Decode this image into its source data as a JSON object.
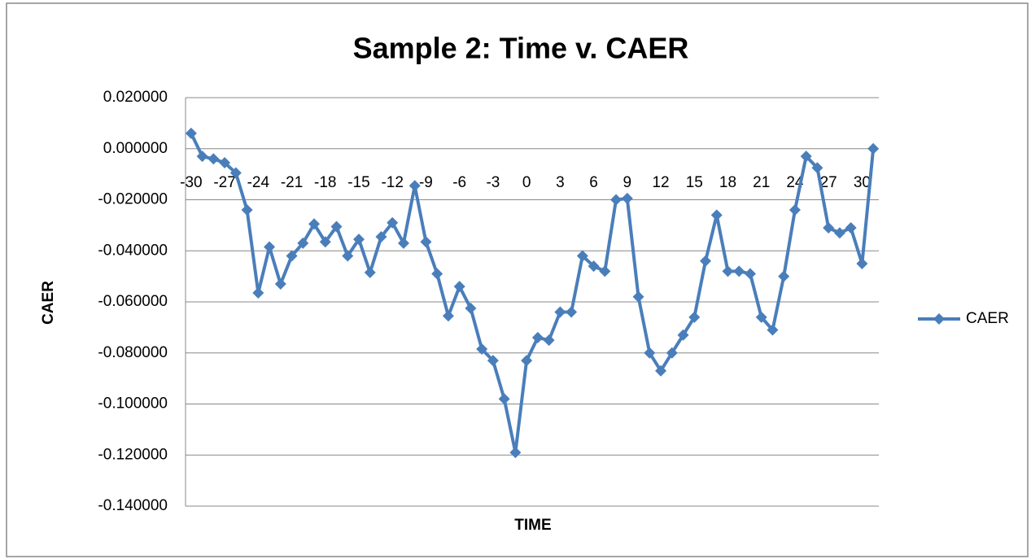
{
  "chart_data": {
    "type": "line",
    "title": "Sample 2: Time v. CAER",
    "x_label": "TIME",
    "y_label": "CAER",
    "categories": [
      -30,
      null,
      null,
      -27,
      null,
      null,
      -24,
      null,
      null,
      -21,
      null,
      null,
      -18,
      null,
      null,
      -15,
      null,
      null,
      -12,
      null,
      null,
      -9,
      null,
      null,
      -6,
      null,
      null,
      -3,
      null,
      null,
      0,
      null,
      null,
      3,
      null,
      null,
      6,
      null,
      null,
      9,
      null,
      null,
      12,
      null,
      null,
      15,
      null,
      null,
      18,
      null,
      null,
      21,
      null,
      null,
      24,
      null,
      null,
      27,
      null,
      null,
      30,
      null
    ],
    "series": [
      {
        "name": "CAER",
        "color": "#4a7ebb",
        "values": [
          0.006,
          -0.003,
          -0.004,
          -0.0055,
          -0.0095,
          -0.024,
          -0.0565,
          -0.0385,
          -0.053,
          -0.042,
          -0.037,
          -0.0295,
          -0.0365,
          -0.0305,
          -0.042,
          -0.0355,
          -0.0485,
          -0.0345,
          -0.029,
          -0.037,
          -0.0145,
          -0.0365,
          -0.049,
          -0.0655,
          -0.054,
          -0.0625,
          -0.0785,
          -0.083,
          -0.098,
          -0.119,
          -0.083,
          -0.074,
          -0.075,
          -0.064,
          -0.064,
          -0.042,
          -0.046,
          -0.048,
          -0.02,
          -0.0195,
          -0.058,
          -0.08,
          -0.087,
          -0.08,
          -0.073,
          -0.066,
          -0.044,
          -0.026,
          -0.048,
          -0.048,
          -0.049,
          -0.066,
          -0.071,
          -0.05,
          -0.024,
          -0.003,
          -0.0075,
          -0.031,
          -0.033,
          -0.031,
          -0.045,
          0.0
        ]
      }
    ],
    "ylim": [
      -0.14,
      0.02
    ],
    "yticks": [
      {
        "value": -0.14,
        "label": "-0.140000"
      },
      {
        "value": -0.12,
        "label": "-0.120000"
      },
      {
        "value": -0.1,
        "label": "-0.100000"
      },
      {
        "value": -0.08,
        "label": "-0.080000"
      },
      {
        "value": -0.06,
        "label": "-0.060000"
      },
      {
        "value": -0.04,
        "label": "-0.040000"
      },
      {
        "value": -0.02,
        "label": "-0.020000"
      },
      {
        "value": 0,
        "label": "0.000000"
      },
      {
        "value": 0.02,
        "label": "0.020000"
      }
    ],
    "grid": true,
    "legend": "right"
  }
}
